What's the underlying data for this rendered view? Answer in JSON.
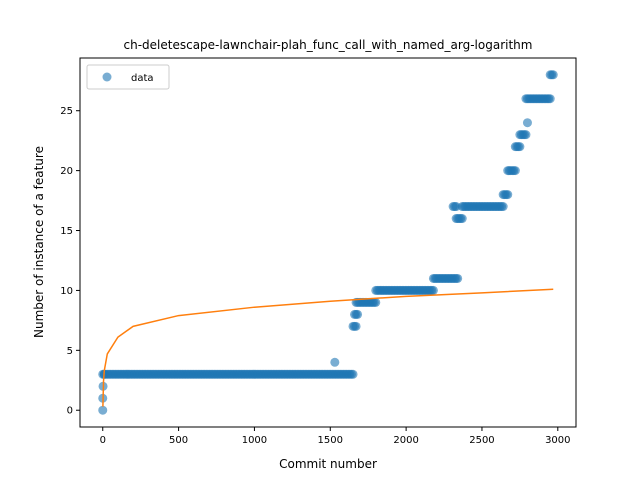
{
  "chart_data": {
    "type": "scatter",
    "title": "ch-deletescape-lawnchair-plah_func_call_with_named_arg-logarithm",
    "xlabel": "Commit number",
    "ylabel": "Number of instance of a feature",
    "xlim": [
      -150,
      3120
    ],
    "ylim": [
      -1.4,
      29.4
    ],
    "x_ticks": [
      0,
      500,
      1000,
      1500,
      2000,
      2500,
      3000
    ],
    "y_ticks": [
      0,
      5,
      10,
      15,
      20,
      25
    ],
    "grid": false,
    "legend": {
      "placement": "upper-left",
      "entries": [
        "data"
      ]
    },
    "colors": {
      "data": "#1f77b4",
      "fit": "#ff7f0e"
    },
    "series": [
      {
        "name": "data",
        "kind": "scatter",
        "segments": [
          {
            "x_start": 0,
            "x_end": 10,
            "y": 3
          },
          {
            "x_start": 10,
            "x_end": 1650,
            "y": 3
          },
          {
            "x_start": 1650,
            "x_end": 1670,
            "y": 7
          },
          {
            "x_start": 1660,
            "x_end": 1680,
            "y": 8
          },
          {
            "x_start": 1670,
            "x_end": 1800,
            "y": 9
          },
          {
            "x_start": 1800,
            "x_end": 2180,
            "y": 10
          },
          {
            "x_start": 2180,
            "x_end": 2340,
            "y": 11
          },
          {
            "x_start": 2310,
            "x_end": 2330,
            "y": 17
          },
          {
            "x_start": 2330,
            "x_end": 2370,
            "y": 16
          },
          {
            "x_start": 2370,
            "x_end": 2640,
            "y": 17
          },
          {
            "x_start": 2640,
            "x_end": 2670,
            "y": 18
          },
          {
            "x_start": 2670,
            "x_end": 2720,
            "y": 20
          },
          {
            "x_start": 2720,
            "x_end": 2750,
            "y": 22
          },
          {
            "x_start": 2750,
            "x_end": 2790,
            "y": 23
          },
          {
            "x_start": 2790,
            "x_end": 2950,
            "y": 26
          },
          {
            "x_start": 2950,
            "x_end": 2970,
            "y": 28
          }
        ],
        "points": [
          {
            "x": 0,
            "y": 0
          },
          {
            "x": 0,
            "y": 1
          },
          {
            "x": 2,
            "y": 2
          },
          {
            "x": 1530,
            "y": 4
          },
          {
            "x": 2800,
            "y": 24
          }
        ]
      },
      {
        "name": "fit",
        "kind": "line",
        "model": "logarithm",
        "x_range": [
          0,
          2970
        ],
        "points": [
          {
            "x": 1,
            "y": 0.3
          },
          {
            "x": 5,
            "y": 2.4
          },
          {
            "x": 10,
            "y": 3.3
          },
          {
            "x": 30,
            "y": 4.7
          },
          {
            "x": 100,
            "y": 6.1
          },
          {
            "x": 200,
            "y": 7.0
          },
          {
            "x": 500,
            "y": 7.9
          },
          {
            "x": 1000,
            "y": 8.6
          },
          {
            "x": 1500,
            "y": 9.1
          },
          {
            "x": 2000,
            "y": 9.5
          },
          {
            "x": 2500,
            "y": 9.8
          },
          {
            "x": 2970,
            "y": 10.1
          }
        ]
      }
    ]
  }
}
